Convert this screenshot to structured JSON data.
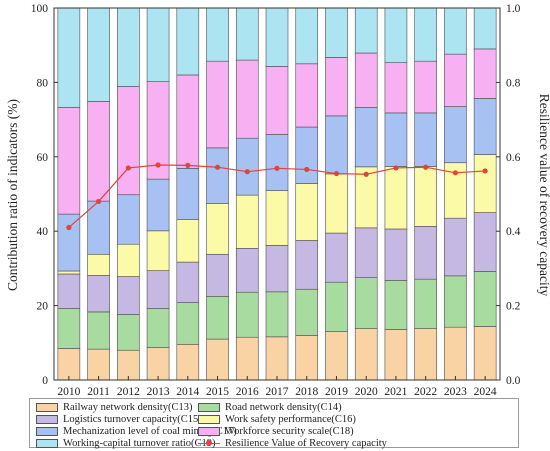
{
  "chart_data": {
    "type": "bar",
    "stacked": true,
    "categories": [
      "2010",
      "2011",
      "2012",
      "2013",
      "2014",
      "2015",
      "2016",
      "2017",
      "2018",
      "2019",
      "2020",
      "2021",
      "2022",
      "2023",
      "2024"
    ],
    "ylabel": "Contribution ratio of indicators (%)",
    "y2label": "Resilience value of recovery capacity",
    "ylim": [
      0,
      100
    ],
    "y2lim": [
      0.0,
      1.0
    ],
    "yticks": [
      "0",
      "20",
      "40",
      "60",
      "80",
      "100"
    ],
    "y2ticks": [
      "0.0",
      "0.2",
      "0.4",
      "0.6",
      "0.8",
      "1.0"
    ],
    "grid": false,
    "legend_position": "bottom",
    "series": [
      {
        "name": "Railway network density(C13)",
        "color": "#f9d3a3",
        "values": [
          8.5,
          8.3,
          8.0,
          8.7,
          9.6,
          11.0,
          11.5,
          11.6,
          12.0,
          13.0,
          13.8,
          13.6,
          13.8,
          14.2,
          14.4
        ]
      },
      {
        "name": "Road network density(C14)",
        "color": "#a8dba0",
        "values": [
          10.7,
          10.0,
          9.6,
          10.5,
          11.2,
          11.5,
          12.1,
          12.1,
          12.4,
          13.3,
          13.7,
          13.2,
          13.3,
          13.8,
          14.8
        ]
      },
      {
        "name": "Logistics turnover capacity(C15)",
        "color": "#c5b8e3",
        "values": [
          9.3,
          9.8,
          10.2,
          10.2,
          10.9,
          11.3,
          11.8,
          12.5,
          13.1,
          13.2,
          13.4,
          13.8,
          14.2,
          15.5,
          15.8
        ]
      },
      {
        "name": "Work safety performance(C16)",
        "color": "#fbfba7",
        "values": [
          0.8,
          5.7,
          8.7,
          10.7,
          11.4,
          13.6,
          14.3,
          14.7,
          15.3,
          15.9,
          16.4,
          16.8,
          16.1,
          14.9,
          15.6
        ]
      },
      {
        "name": "Mechanization level of coal mining(C17)",
        "color": "#a8c1f3",
        "values": [
          15.3,
          14.3,
          13.3,
          13.9,
          13.8,
          15.0,
          15.3,
          15.1,
          15.2,
          15.6,
          16.0,
          14.4,
          14.4,
          15.1,
          15.1
        ]
      },
      {
        "name": "Workforce security scale(C18)",
        "color": "#f7b1f3",
        "values": [
          28.7,
          26.8,
          29.1,
          26.2,
          25.1,
          23.3,
          21.0,
          18.3,
          17.0,
          15.7,
          14.6,
          13.5,
          13.9,
          14.1,
          13.3
        ]
      },
      {
        "name": "Working-capital turnover ratio(C19)",
        "color": "#ace4f2",
        "values": [
          26.7,
          25.1,
          21.1,
          19.8,
          18.0,
          14.3,
          14.0,
          15.7,
          15.0,
          13.3,
          12.1,
          14.7,
          14.3,
          12.4,
          11.0
        ]
      }
    ],
    "line_series": {
      "name": "Resilience Value of Recovery capacity",
      "color": "#e0443a",
      "axis": "right",
      "values": [
        0.41,
        0.48,
        0.57,
        0.578,
        0.577,
        0.572,
        0.56,
        0.569,
        0.566,
        0.555,
        0.553,
        0.57,
        0.572,
        0.557,
        0.562
      ]
    }
  }
}
